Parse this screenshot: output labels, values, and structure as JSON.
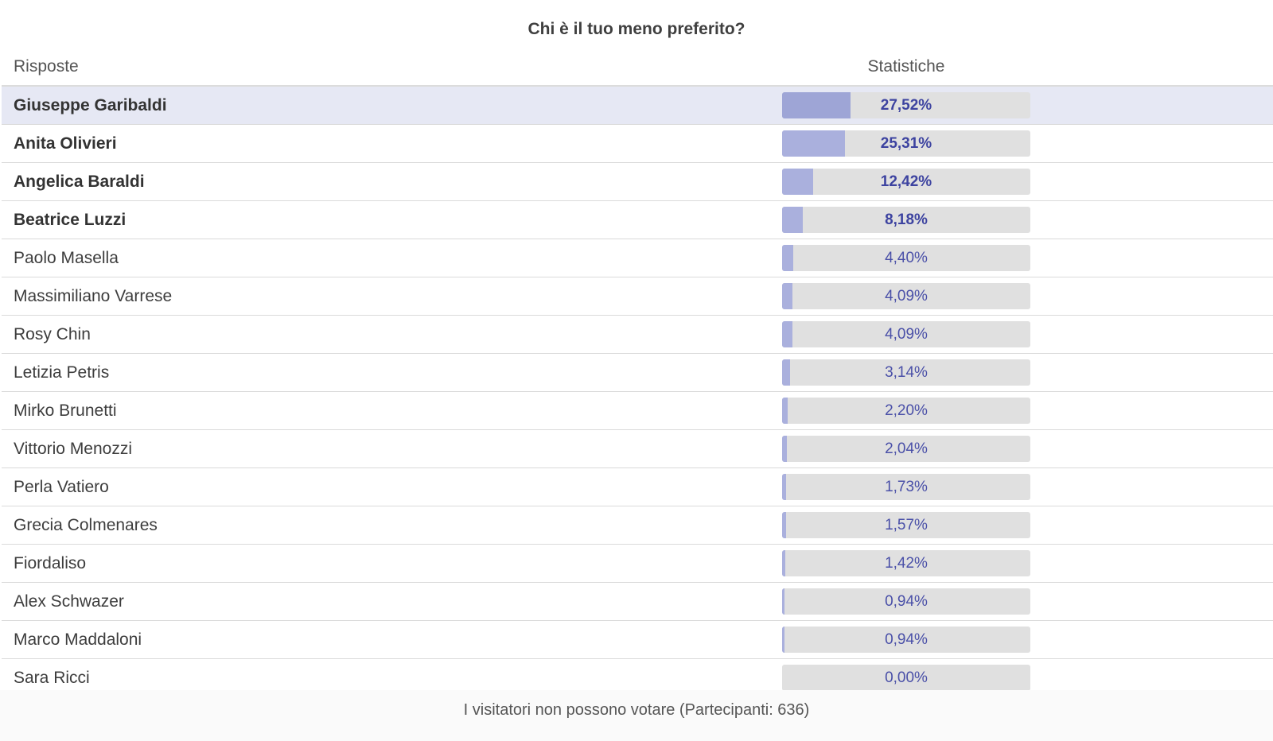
{
  "poll": {
    "title": "Chi è il tuo meno preferito?",
    "header": {
      "answers": "Risposte",
      "stats": "Statistiche"
    },
    "options": [
      {
        "label": "Giuseppe Garibaldi",
        "percent_text": "27,52%",
        "percent": 27.52,
        "top": true,
        "highlighted": true
      },
      {
        "label": "Anita Olivieri",
        "percent_text": "25,31%",
        "percent": 25.31,
        "top": true
      },
      {
        "label": "Angelica Baraldi",
        "percent_text": "12,42%",
        "percent": 12.42,
        "top": true
      },
      {
        "label": "Beatrice Luzzi",
        "percent_text": "8,18%",
        "percent": 8.18,
        "top": true
      },
      {
        "label": "Paolo Masella",
        "percent_text": "4,40%",
        "percent": 4.4
      },
      {
        "label": "Massimiliano Varrese",
        "percent_text": "4,09%",
        "percent": 4.09
      },
      {
        "label": "Rosy Chin",
        "percent_text": "4,09%",
        "percent": 4.09
      },
      {
        "label": "Letizia Petris",
        "percent_text": "3,14%",
        "percent": 3.14
      },
      {
        "label": "Mirko Brunetti",
        "percent_text": "2,20%",
        "percent": 2.2
      },
      {
        "label": "Vittorio Menozzi",
        "percent_text": "2,04%",
        "percent": 2.04
      },
      {
        "label": "Perla Vatiero",
        "percent_text": "1,73%",
        "percent": 1.73
      },
      {
        "label": "Grecia Colmenares",
        "percent_text": "1,57%",
        "percent": 1.57
      },
      {
        "label": "Fiordaliso",
        "percent_text": "1,42%",
        "percent": 1.42
      },
      {
        "label": "Alex Schwazer",
        "percent_text": "0,94%",
        "percent": 0.94
      },
      {
        "label": "Marco Maddaloni",
        "percent_text": "0,94%",
        "percent": 0.94
      },
      {
        "label": "Sara Ricci",
        "percent_text": "0,00%",
        "percent": 0.0
      }
    ],
    "footer": "I visitatori non possono votare (Partecipanti: 636)"
  },
  "colors": {
    "bar_fill": "#aab0dd",
    "bar_track": "#e0e0e0",
    "highlight_row": "#e6e8f4",
    "percent_text": "#4a50a8"
  }
}
